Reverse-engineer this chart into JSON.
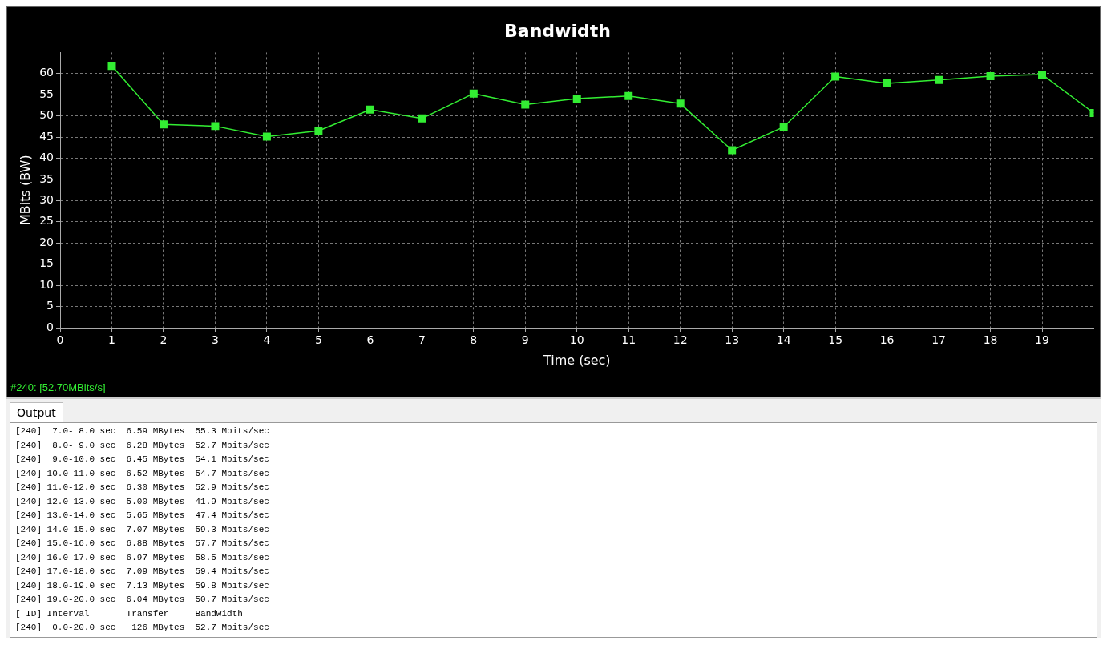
{
  "chart_data": {
    "type": "line",
    "title": "Bandwidth",
    "xlabel": "Time (sec)",
    "ylabel": "MBits (BW)",
    "x": [
      1,
      2,
      3,
      4,
      5,
      6,
      7,
      8,
      9,
      10,
      11,
      12,
      13,
      14,
      15,
      16,
      17,
      18,
      19,
      20
    ],
    "series": [
      {
        "color": "#33ee33",
        "values": [
          61.8,
          48,
          47.6,
          45.1,
          46.5,
          51.5,
          49.4,
          55.3,
          52.7,
          54.1,
          54.7,
          52.9,
          41.9,
          47.4,
          59.3,
          57.7,
          58.5,
          59.4,
          59.8,
          50.7
        ]
      }
    ],
    "xlim": [
      0,
      20
    ],
    "xticks": [
      0,
      1,
      2,
      3,
      4,
      5,
      6,
      7,
      8,
      9,
      10,
      11,
      12,
      13,
      14,
      15,
      16,
      17,
      18,
      19
    ],
    "ylim": [
      0,
      65
    ],
    "yticks": [
      0,
      5,
      10,
      15,
      20,
      25,
      30,
      35,
      40,
      45,
      50,
      55,
      60
    ],
    "grid": true,
    "legend": false,
    "marker": "square",
    "line_style": "solid",
    "annotations": [
      "#240: [52.70MBits/s]",
      "Output",
      "[240]  7.0- 8.0 sec  6.59 MBytes  55.3 Mbits/sec",
      "[240]  8.0- 9.0 sec  6.28 MBytes  52.7 Mbits/sec",
      "[240]  9.0-10.0 sec  6.45 MBytes  54.1 Mbits/sec",
      "[240] 10.0-11.0 sec  6.52 MBytes  54.7 Mbits/sec",
      "[240] 11.0-12.0 sec  6.30 MBytes  52.9 Mbits/sec",
      "[240] 12.0-13.0 sec  5.00 MBytes  41.9 Mbits/sec",
      "[240] 13.0-14.0 sec  5.65 MBytes  47.4 Mbits/sec",
      "[240] 14.0-15.0 sec  7.07 MBytes  59.3 Mbits/sec",
      "[240] 15.0-16.0 sec  6.88 MBytes  57.7 Mbits/sec",
      "[240] 16.0-17.0 sec  6.97 MBytes  58.5 Mbits/sec",
      "[240] 17.0-18.0 sec  7.09 MBytes  59.4 Mbits/sec",
      "[240] 18.0-19.0 sec  7.13 MBytes  59.8 Mbits/sec",
      "[240] 19.0-20.0 sec  6.04 MBytes  50.7 Mbits/sec",
      "[ ID] Interval       Transfer     Bandwidth",
      "[240]  0.0-20.0 sec   126 MBytes  52.7 Mbits/sec"
    ]
  }
}
